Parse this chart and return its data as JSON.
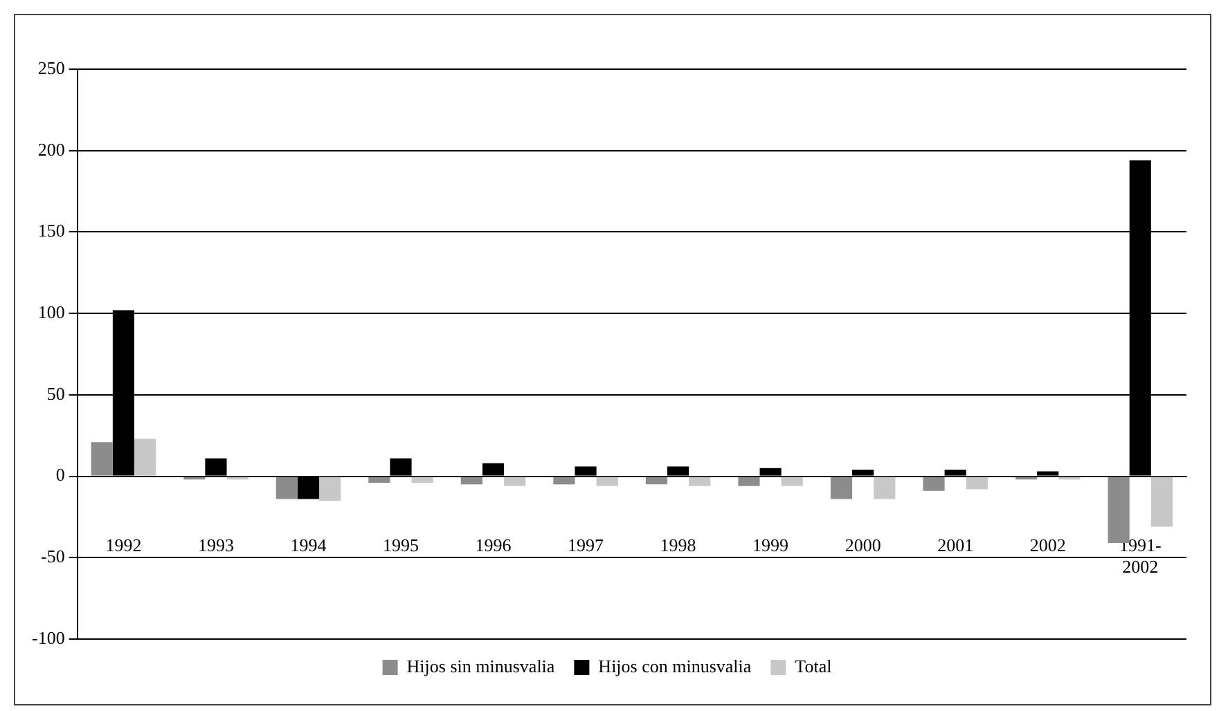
{
  "chart_data": {
    "type": "bar",
    "categories": [
      "1992",
      "1993",
      "1994",
      "1995",
      "1996",
      "1997",
      "1998",
      "1999",
      "2000",
      "2001",
      "2002",
      "1991-\n2002"
    ],
    "series": [
      {
        "name": "Hijos sin minusvalia",
        "color": "#8c8c8c",
        "values": [
          21,
          -2,
          -14,
          -4,
          -5,
          -5,
          -5,
          -6,
          -14,
          -9,
          -2,
          -41
        ]
      },
      {
        "name": "Hijos con minusvalia",
        "color": "#000000",
        "values": [
          102,
          11,
          -14,
          11,
          8,
          6,
          6,
          5,
          4,
          4,
          3,
          194
        ]
      },
      {
        "name": "Total",
        "color": "#c8c8c8",
        "values": [
          23,
          -2,
          -15,
          -4,
          -6,
          -6,
          -6,
          -6,
          -14,
          -8,
          -2,
          -31
        ]
      }
    ],
    "ylim": [
      -100,
      250
    ],
    "yticks": [
      -100,
      -50,
      0,
      50,
      100,
      150,
      200,
      250
    ],
    "grid": "y",
    "legend": "bottom"
  }
}
